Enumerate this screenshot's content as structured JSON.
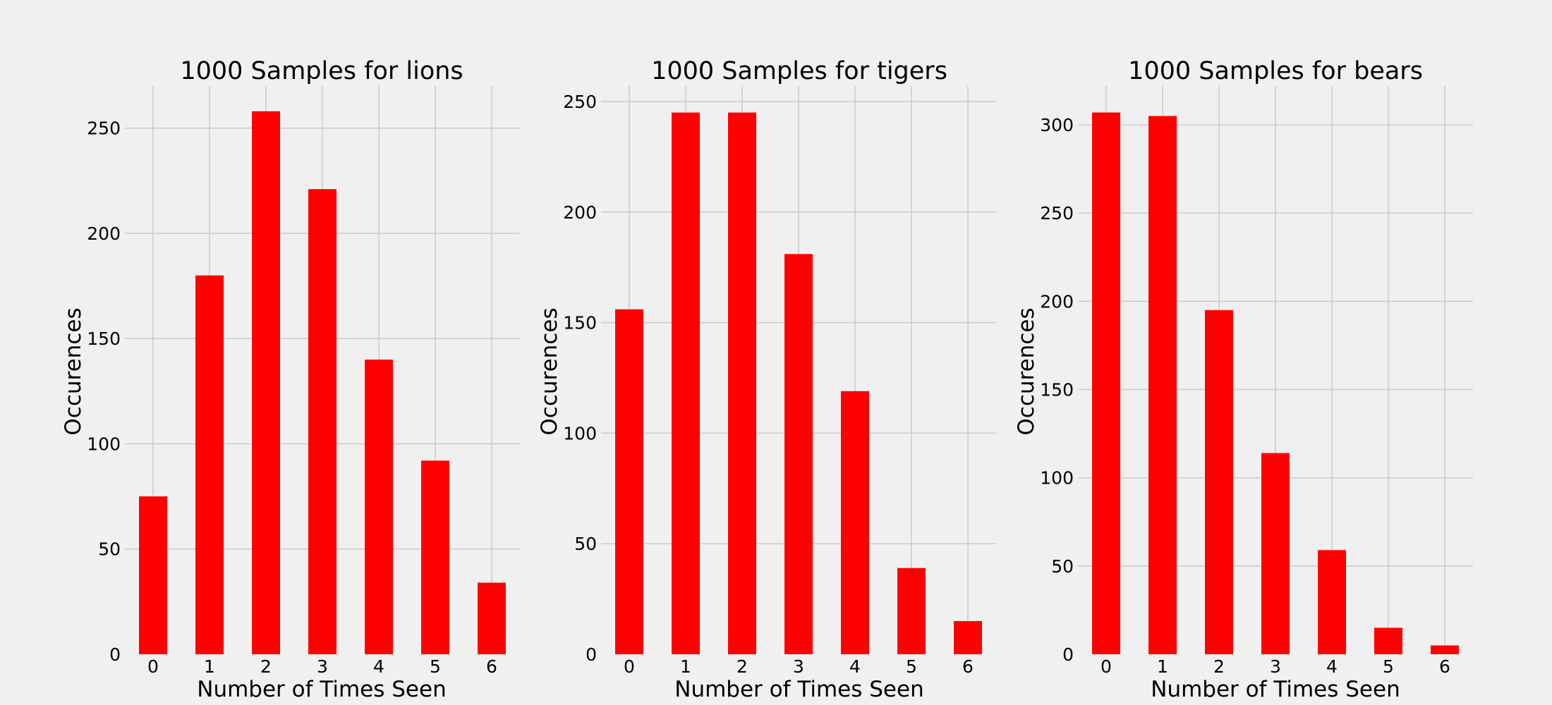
{
  "chart_data": [
    {
      "type": "bar",
      "title": "1000 Samples for lions",
      "xlabel": "Number of Times Seen",
      "ylabel": "Occurences",
      "categories": [
        "0",
        "1",
        "2",
        "3",
        "4",
        "5",
        "6"
      ],
      "values": [
        75,
        180,
        258,
        221,
        140,
        92,
        34
      ],
      "ylim": [
        0,
        270
      ],
      "yticks": [
        0,
        50,
        100,
        150,
        200,
        250
      ],
      "bar_color": "#ff0000",
      "grid": true
    },
    {
      "type": "bar",
      "title": "1000 Samples for tigers",
      "xlabel": "Number of Times Seen",
      "ylabel": "Occurences",
      "categories": [
        "0",
        "1",
        "2",
        "3",
        "4",
        "5",
        "6"
      ],
      "values": [
        156,
        245,
        245,
        181,
        119,
        39,
        15
      ],
      "ylim": [
        0,
        257
      ],
      "yticks": [
        0,
        50,
        100,
        150,
        200,
        250
      ],
      "bar_color": "#ff0000",
      "grid": true
    },
    {
      "type": "bar",
      "title": "1000 Samples for bears",
      "xlabel": "Number of Times Seen",
      "ylabel": "Occurences",
      "categories": [
        "0",
        "1",
        "2",
        "3",
        "4",
        "5",
        "6"
      ],
      "values": [
        307,
        305,
        195,
        114,
        59,
        15,
        5
      ],
      "ylim": [
        0,
        322
      ],
      "yticks": [
        0,
        50,
        100,
        150,
        200,
        250,
        300
      ],
      "bar_color": "#ff0000",
      "grid": true
    }
  ],
  "colors": {
    "background": "#f0f0f0",
    "grid": "#cbcbcb",
    "bar": "#ff0000"
  }
}
